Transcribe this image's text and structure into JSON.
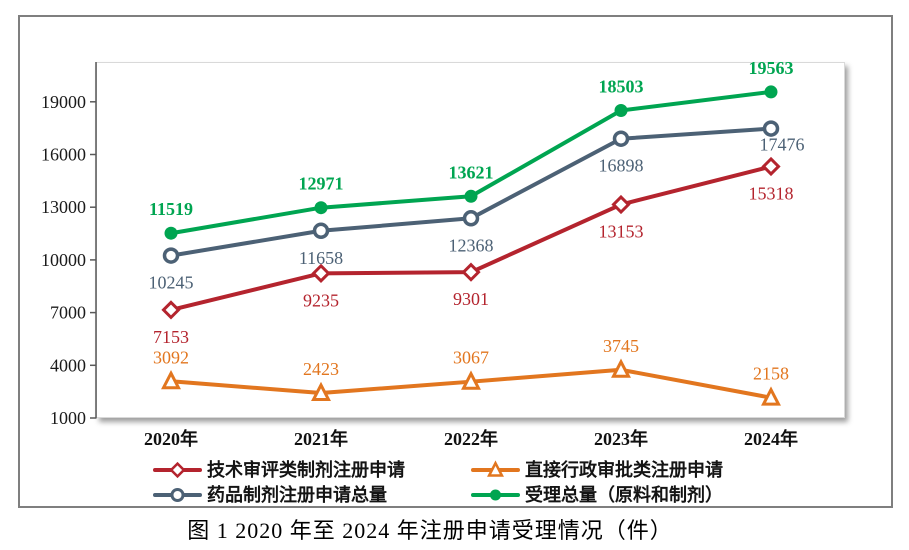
{
  "figure": {
    "caption": "图 1  2020 年至 2024 年注册申请受理情况（件）"
  },
  "chart_data": {
    "type": "line",
    "title": "图 1  2020 年至 2024 年注册申请受理情况（件）",
    "categories": [
      "2020年",
      "2021年",
      "2022年",
      "2023年",
      "2024年"
    ],
    "series": [
      {
        "name": "技术审评类制剂注册申请",
        "values": [
          7153,
          9235,
          9301,
          13153,
          15318
        ],
        "color": "#b4242e",
        "marker": "diamond-open",
        "label_side": "below",
        "label_bold": false
      },
      {
        "name": "直接行政审批类注册申请",
        "values": [
          3092,
          2423,
          3067,
          3745,
          2158
        ],
        "color": "#e2761f",
        "marker": "triangle-open",
        "label_side": "above",
        "label_bold": false
      },
      {
        "name": "药品制剂注册申请总量",
        "values": [
          10245,
          11658,
          12368,
          16898,
          17476
        ],
        "color": "#4c6175",
        "marker": "circle-open",
        "label_side": "below",
        "label_bold": false,
        "label_overrides": {
          "4": {
            "dx": 11,
            "dy": 22
          }
        }
      },
      {
        "name": "受理总量（原料和制剂）",
        "values": [
          11519,
          12971,
          13621,
          18503,
          19563
        ],
        "color": "#00a551",
        "marker": "circle-filled",
        "label_side": "above",
        "label_bold": true
      }
    ],
    "y_ticks": [
      19000,
      16000,
      13000,
      10000,
      7000,
      4000,
      1000
    ],
    "ylim": [
      1000,
      22000
    ],
    "xlabel": "",
    "ylabel": "",
    "grid": false,
    "legend_position": "bottom",
    "axis_color": "#595959",
    "tick_label_color": "#1a1a1a",
    "x_label_color": "#111111",
    "legend_text_color": "#141414"
  }
}
